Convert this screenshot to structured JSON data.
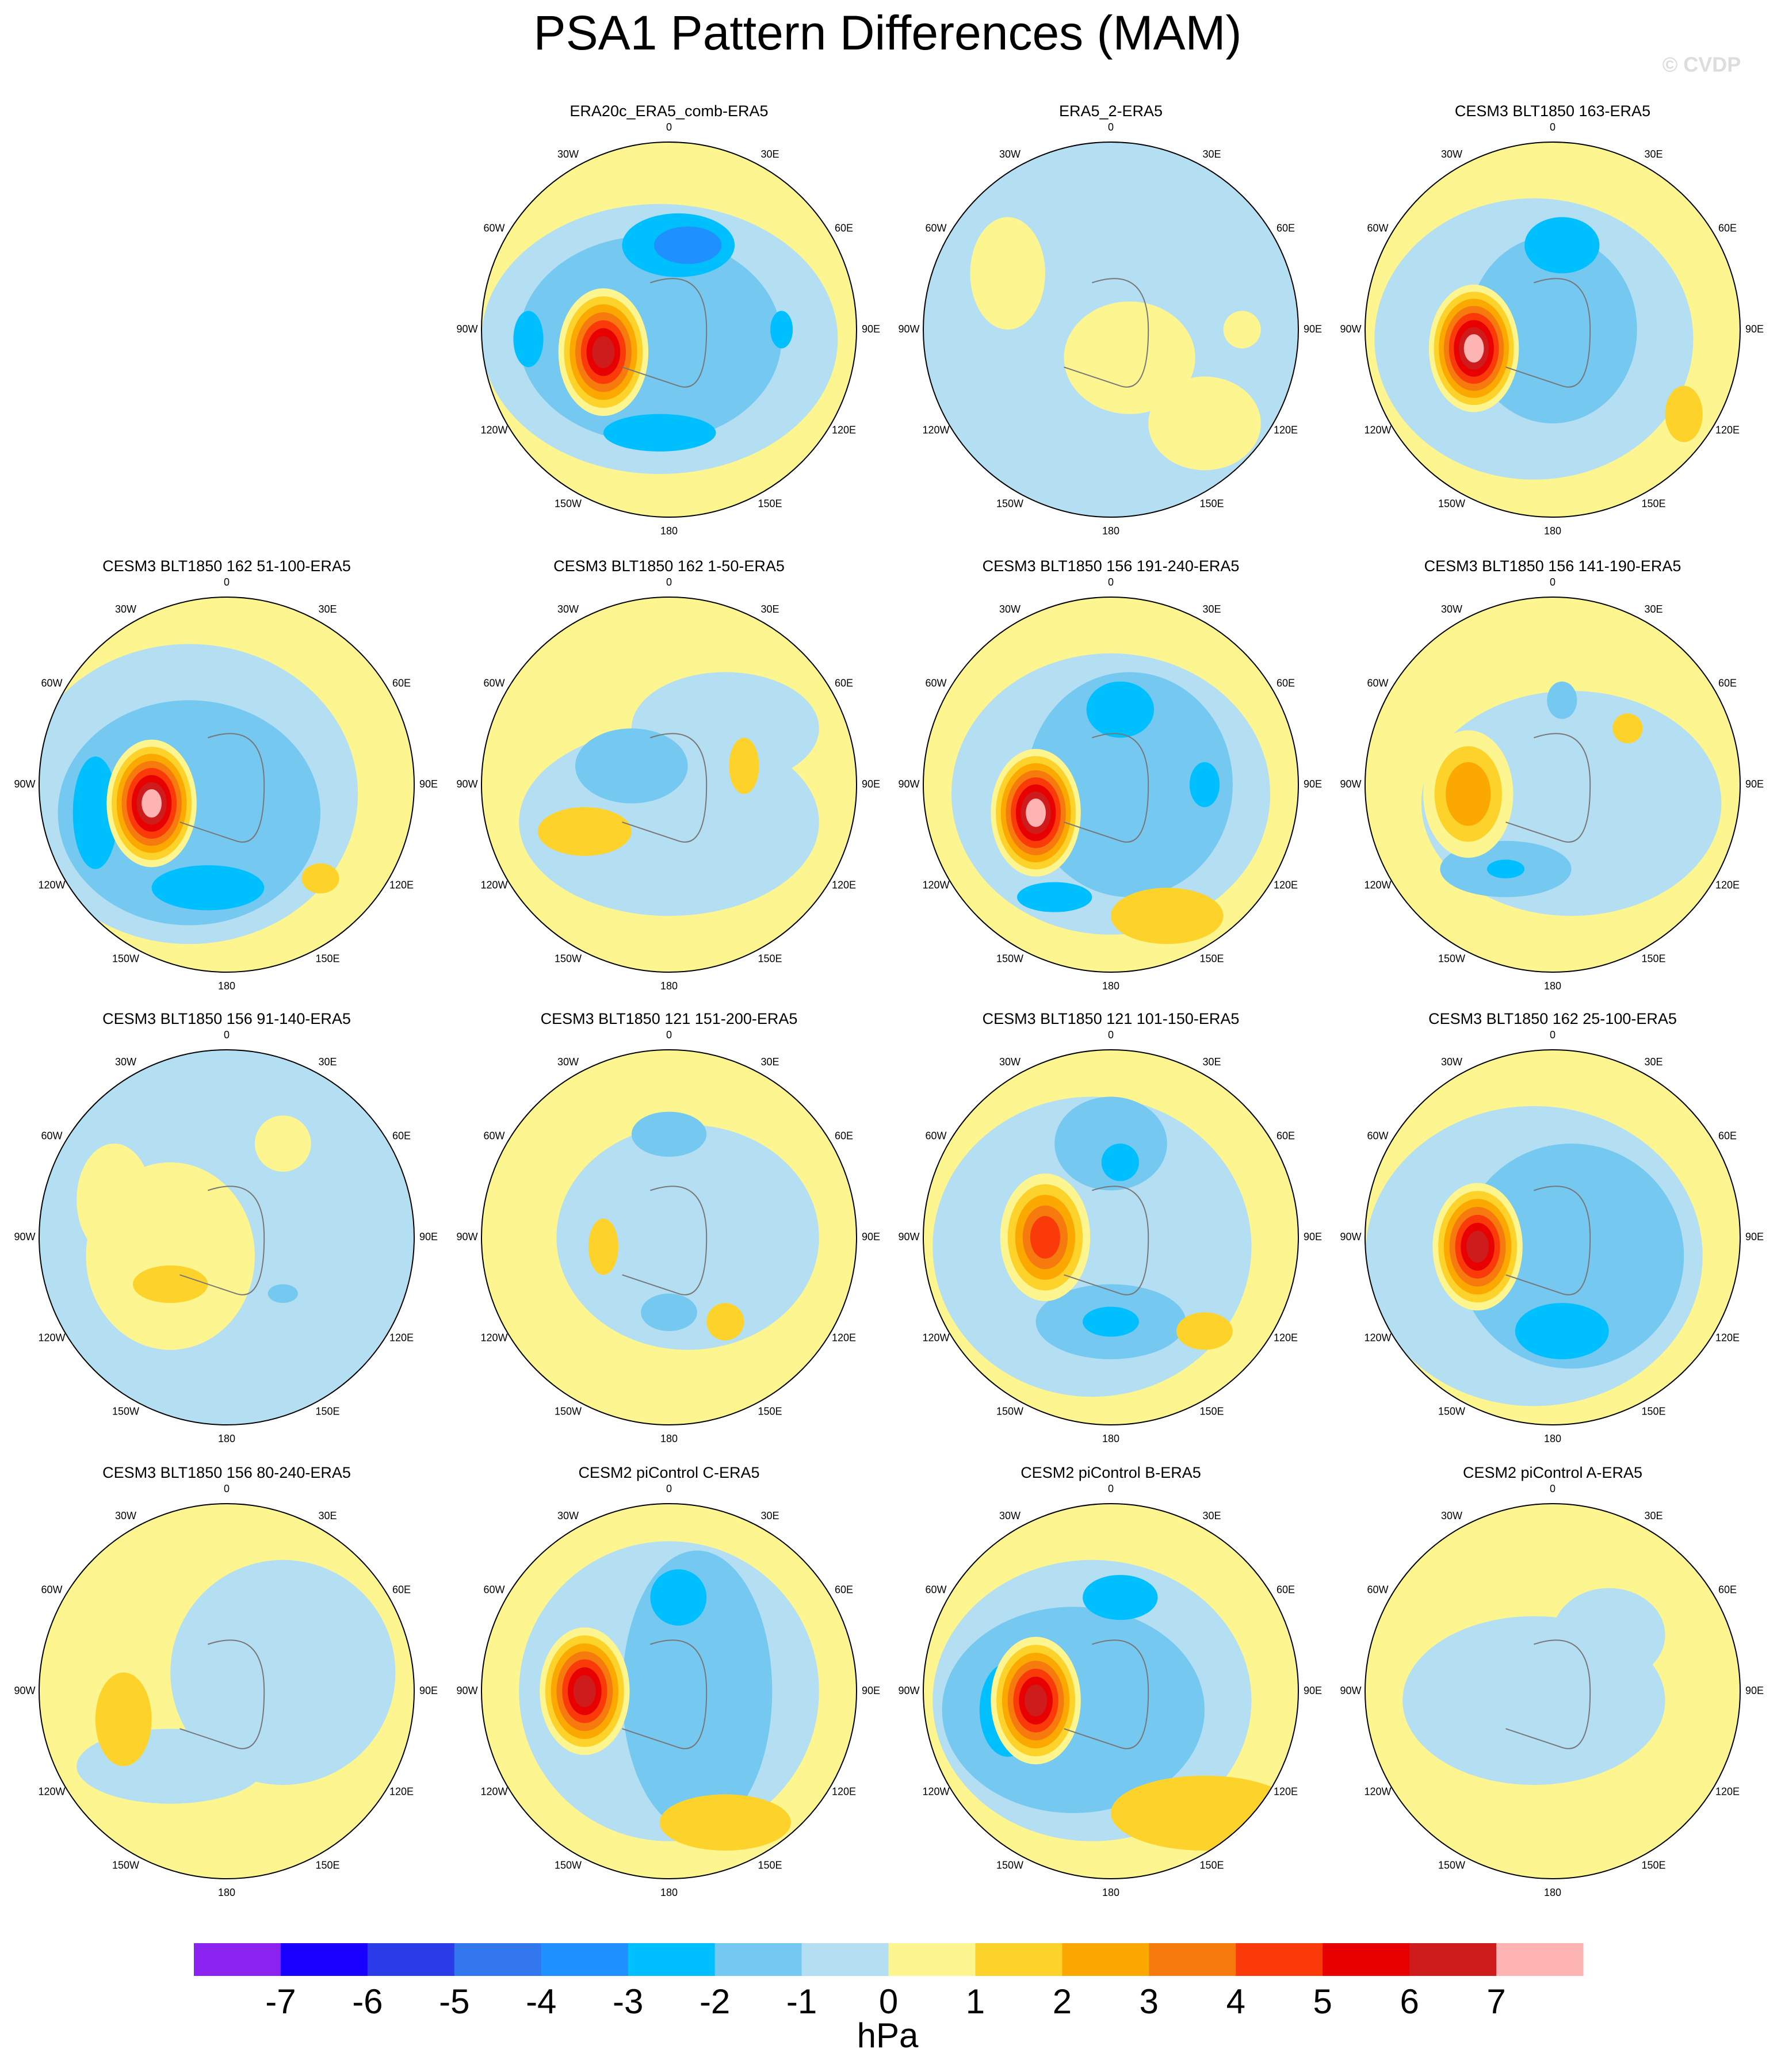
{
  "title": "PSA1 Pattern Differences (MAM)",
  "watermark": "© CVDP",
  "panels": [
    {
      "title": "ERA20c_ERA5_comb-ERA5"
    },
    {
      "title": "ERA5_2-ERA5"
    },
    {
      "title": "CESM3 BLT1850 163-ERA5"
    },
    {
      "title": "CESM3 BLT1850 162 51-100-ERA5"
    },
    {
      "title": "CESM3 BLT1850 162 1-50-ERA5"
    },
    {
      "title": "CESM3 BLT1850 156 191-240-ERA5"
    },
    {
      "title": "CESM3 BLT1850 156 141-190-ERA5"
    },
    {
      "title": "CESM3 BLT1850 156 91-140-ERA5"
    },
    {
      "title": "CESM3 BLT1850 121 151-200-ERA5"
    },
    {
      "title": "CESM3 BLT1850 121 101-150-ERA5"
    },
    {
      "title": "CESM3 BLT1850 162 25-100-ERA5"
    },
    {
      "title": "CESM3 BLT1850 156 80-240-ERA5"
    },
    {
      "title": "CESM2 piControl C-ERA5"
    },
    {
      "title": "CESM2 piControl B-ERA5"
    },
    {
      "title": "CESM2 piControl A-ERA5"
    }
  ],
  "lon_labels": [
    "0",
    "30E",
    "60E",
    "90E",
    "120E",
    "150E",
    "180",
    "150W",
    "120W",
    "90W",
    "60W",
    "30W"
  ],
  "colorbar": {
    "colors": [
      "#8b22f0",
      "#1a00ff",
      "#2b3de8",
      "#3377ee",
      "#1e90ff",
      "#00bfff",
      "#75c8f0",
      "#b4dff3",
      "#fdf58f",
      "#fdd32b",
      "#fba800",
      "#f77a0f",
      "#fb3a0a",
      "#e80000",
      "#ce1c1c",
      "#ffb4b4"
    ],
    "ticks": [
      -7,
      -6,
      -5,
      -4,
      -3,
      -2,
      -1,
      0,
      1,
      2,
      3,
      4,
      5,
      6,
      7
    ],
    "label": "hPa"
  }
}
